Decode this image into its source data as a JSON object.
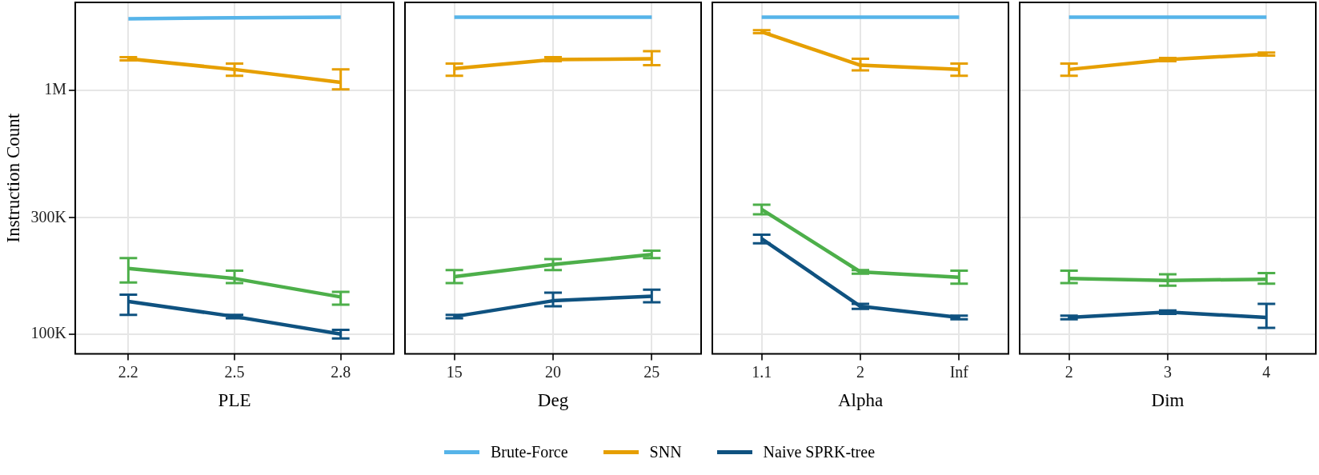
{
  "chart_data": [
    {
      "type": "line",
      "xlabel": "PLE",
      "ylabel": "Instruction Count",
      "categories": [
        "2.2",
        "2.5",
        "2.8"
      ],
      "log": "y",
      "ylim": [
        83000,
        2300000
      ],
      "yticks": [
        {
          "value": 100000,
          "label": "100K"
        },
        {
          "value": 300000,
          "label": "300K"
        },
        {
          "value": 1000000,
          "label": "1M"
        }
      ],
      "grid": true,
      "legend": "bottom",
      "marker": "none",
      "line_style": "solid",
      "series": [
        {
          "color": "#4daf4a",
          "values": [
            186000,
            169000,
            142000
          ],
          "errors": [
            [
              163000,
              205000
            ],
            [
              162000,
              182000
            ],
            [
              132000,
              149000
            ]
          ]
        },
        {
          "name": "Brute-Force",
          "color": "#56b4e9",
          "values": [
            1970000,
            1990000,
            2000000
          ]
        },
        {
          "name": "SNN",
          "color": "#e69f00",
          "values": [
            1350000,
            1220000,
            1080000
          ],
          "errors": [
            [
              1330000,
              1370000
            ],
            [
              1150000,
              1290000
            ],
            [
              1010000,
              1220000
            ]
          ]
        },
        {
          "name": "Naive SPRK-tree",
          "color": "#0f5280",
          "values": [
            136000,
            118000,
            100000
          ],
          "errors": [
            [
              120000,
              145000
            ],
            [
              116000,
              120000
            ],
            [
              96000,
              104000
            ]
          ]
        }
      ]
    },
    {
      "type": "line",
      "xlabel": "Deg",
      "categories": [
        "15",
        "20",
        "25"
      ],
      "log": "y",
      "ylim": [
        83000,
        2300000
      ],
      "yticks": [
        {
          "value": 100000,
          "label": null
        },
        {
          "value": 300000,
          "label": null
        },
        {
          "value": 1000000,
          "label": null
        }
      ],
      "tick_labels": "x",
      "grid": true,
      "marker": "none",
      "line_style": "solid",
      "series": [
        {
          "color": "#4daf4a",
          "values": [
            172000,
            193000,
            212000
          ],
          "errors": [
            [
              162000,
              183000
            ],
            [
              183000,
              203000
            ],
            [
              205000,
              220000
            ]
          ]
        },
        {
          "color": "#56b4e9",
          "values": [
            2000000,
            2000000,
            2000000
          ]
        },
        {
          "color": "#e69f00",
          "values": [
            1230000,
            1340000,
            1350000
          ],
          "errors": [
            [
              1150000,
              1290000
            ],
            [
              1320000,
              1370000
            ],
            [
              1270000,
              1450000
            ]
          ]
        },
        {
          "color": "#0f5280",
          "values": [
            118000,
            137000,
            143000
          ],
          "errors": [
            [
              116000,
              120000
            ],
            [
              130000,
              148000
            ],
            [
              135000,
              152000
            ]
          ]
        }
      ]
    },
    {
      "type": "line",
      "xlabel": "Alpha",
      "categories": [
        "1.1",
        "2",
        "Inf"
      ],
      "log": "y",
      "ylim": [
        83000,
        2300000
      ],
      "yticks": [
        {
          "value": 100000,
          "label": null
        },
        {
          "value": 300000,
          "label": null
        },
        {
          "value": 1000000,
          "label": null
        }
      ],
      "tick_labels": "x",
      "grid": true,
      "marker": "none",
      "line_style": "solid",
      "series": [
        {
          "color": "#4daf4a",
          "values": [
            325000,
            180000,
            171000
          ],
          "errors": [
            [
              310000,
              340000
            ],
            [
              177000,
              183000
            ],
            [
              161000,
              182000
            ]
          ]
        },
        {
          "color": "#56b4e9",
          "values": [
            2000000,
            2000000,
            2000000
          ]
        },
        {
          "color": "#e69f00",
          "values": [
            1740000,
            1270000,
            1220000
          ],
          "errors": [
            [
              1720000,
              1770000
            ],
            [
              1210000,
              1350000
            ],
            [
              1150000,
              1290000
            ]
          ]
        },
        {
          "color": "#0f5280",
          "values": [
            246000,
            130000,
            117000
          ],
          "errors": [
            [
              236000,
              256000
            ],
            [
              127000,
              133000
            ],
            [
              115000,
              119000
            ]
          ]
        }
      ]
    },
    {
      "type": "line",
      "xlabel": "Dim",
      "categories": [
        "2",
        "3",
        "4"
      ],
      "log": "y",
      "ylim": [
        83000,
        2300000
      ],
      "yticks": [
        {
          "value": 100000,
          "label": null
        },
        {
          "value": 300000,
          "label": null
        },
        {
          "value": 1000000,
          "label": null
        }
      ],
      "tick_labels": "x",
      "grid": true,
      "marker": "none",
      "line_style": "solid",
      "series": [
        {
          "color": "#4daf4a",
          "values": [
            169000,
            166000,
            168000
          ],
          "errors": [
            [
              162000,
              182000
            ],
            [
              158000,
              176000
            ],
            [
              161000,
              178000
            ]
          ]
        },
        {
          "color": "#56b4e9",
          "values": [
            2000000,
            2000000,
            2000000
          ]
        },
        {
          "color": "#e69f00",
          "values": [
            1220000,
            1340000,
            1410000
          ],
          "errors": [
            [
              1150000,
              1290000
            ],
            [
              1320000,
              1360000
            ],
            [
              1390000,
              1430000
            ]
          ]
        },
        {
          "color": "#0f5280",
          "values": [
            117000,
            123000,
            117000
          ],
          "errors": [
            [
              115000,
              119000
            ],
            [
              121000,
              125000
            ],
            [
              106000,
              133000
            ]
          ]
        }
      ]
    }
  ]
}
